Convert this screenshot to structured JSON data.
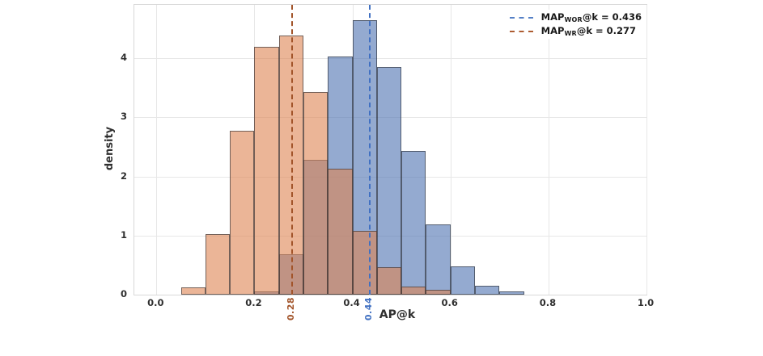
{
  "chart_data": {
    "type": "histogram",
    "xlabel": "AP@k",
    "ylabel": "density",
    "grid": true,
    "xlim": [
      -0.045,
      1.0
    ],
    "ylim": [
      0,
      4.905
    ],
    "x_tick_values": [
      0.0,
      0.2,
      0.4,
      0.6,
      0.8,
      1.0
    ],
    "x_tick_labels": [
      "0.0",
      "0.2",
      "0.4",
      "0.6",
      "0.8",
      "1.0"
    ],
    "y_tick_values": [
      0,
      1,
      2,
      3,
      4
    ],
    "y_tick_labels": [
      "0",
      "1",
      "2",
      "3",
      "4"
    ],
    "bin_width": 0.05,
    "series": [
      {
        "name": "WOR",
        "fill": "rgba(76,114,176,0.6)",
        "bin_start": 0.2,
        "densities": [
          0.06,
          0.69,
          2.28,
          4.03,
          4.65,
          3.85,
          2.43,
          1.19,
          0.48,
          0.15,
          0.05
        ]
      },
      {
        "name": "WR",
        "fill": "rgba(221,132,82,0.6)",
        "bin_start": 0.05,
        "densities": [
          0.12,
          1.03,
          2.77,
          4.2,
          4.39,
          3.43,
          2.13,
          1.08,
          0.46,
          0.14,
          0.08
        ]
      }
    ],
    "vlines": [
      {
        "x": 0.436,
        "color": "#4070c2",
        "axis_label": "0.44"
      },
      {
        "x": 0.277,
        "color": "#a2542a",
        "axis_label": "0.28"
      }
    ],
    "legend": {
      "position": "upper right",
      "entries": [
        {
          "prefix": "MAP",
          "sub": "WOR",
          "suffix": "@k = 0.436",
          "color": "#5580c6"
        },
        {
          "prefix": "MAP",
          "sub": "WR",
          "suffix": "@k = 0.277",
          "color": "#ad5c31"
        }
      ]
    }
  }
}
